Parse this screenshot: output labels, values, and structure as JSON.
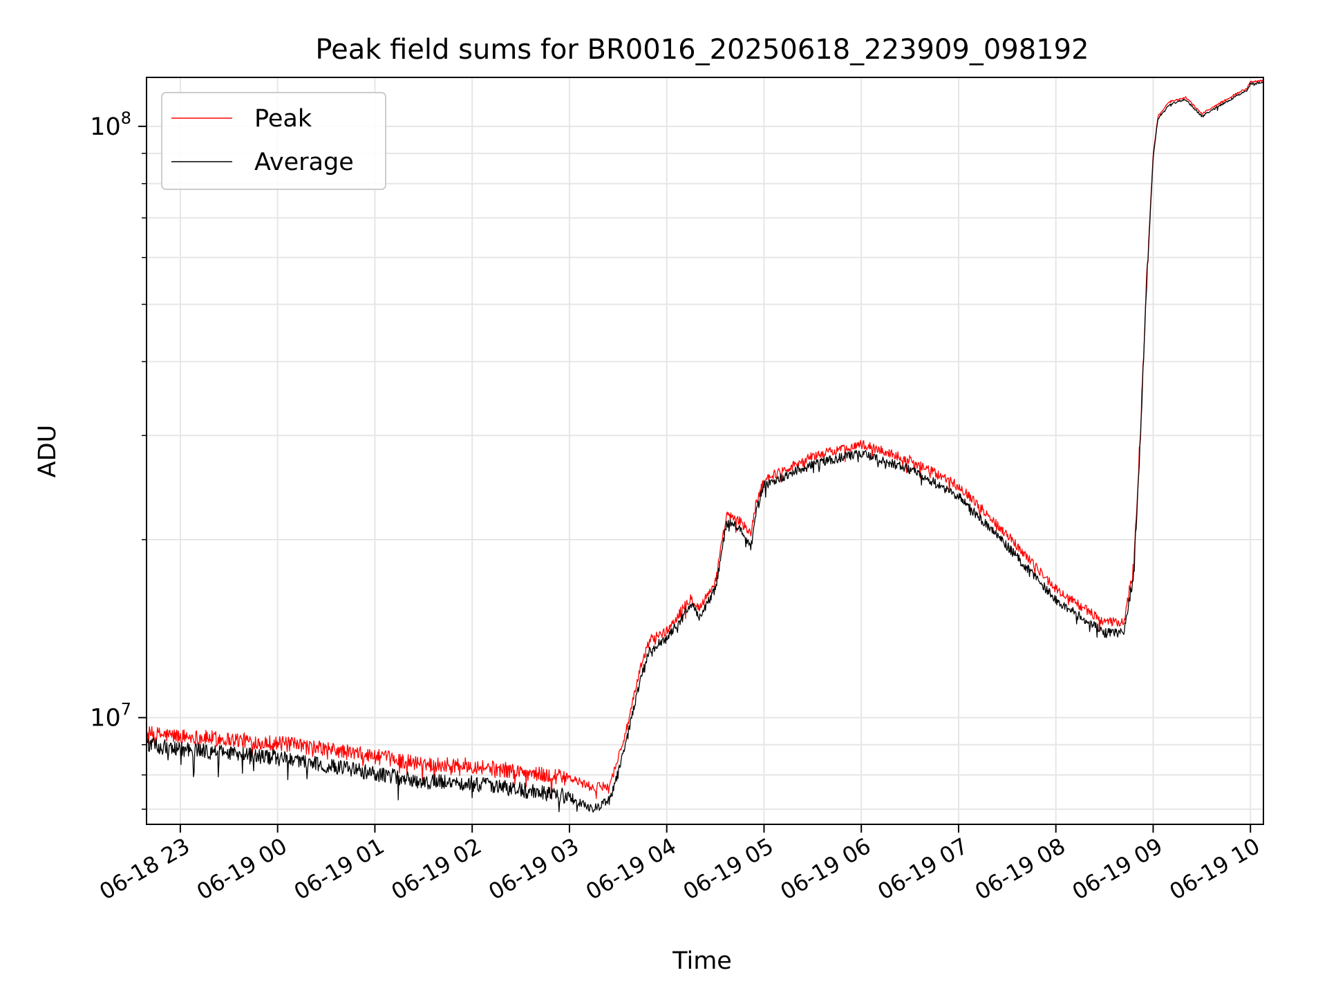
{
  "chart_data": {
    "type": "line",
    "title": "Peak field sums for BR0016_20250618_223909_098192",
    "xlabel": "Time",
    "ylabel": "ADU",
    "y_scale": "log",
    "ylim": [
      6600000,
      121000000
    ],
    "xlim": [
      "2025-06-18T22:39:09",
      "2025-06-19T10:08:00"
    ],
    "grid": true,
    "legend_position": "upper-left",
    "x_tick_labels": [
      "06-18 23",
      "06-19 00",
      "06-19 01",
      "06-19 02",
      "06-19 03",
      "06-19 04",
      "06-19 05",
      "06-19 06",
      "06-19 07",
      "06-19 08",
      "06-19 09",
      "06-19 10"
    ],
    "x_ticks": [
      "2025-06-18T23:00",
      "2025-06-19T00:00",
      "2025-06-19T01:00",
      "2025-06-19T02:00",
      "2025-06-19T03:00",
      "2025-06-19T04:00",
      "2025-06-19T05:00",
      "2025-06-19T06:00",
      "2025-06-19T07:00",
      "2025-06-19T08:00",
      "2025-06-19T09:00",
      "2025-06-19T10:00"
    ],
    "y_major_ticks": [
      {
        "value": 10000000,
        "base": "10",
        "exp": "7"
      },
      {
        "value": 100000000,
        "base": "10",
        "exp": "8"
      }
    ],
    "series": [
      {
        "name": "Peak",
        "color": "#ff0000",
        "points": [
          [
            "2025-06-18T22:39",
            9400000
          ],
          [
            "2025-06-18T23:00",
            9300000
          ],
          [
            "2025-06-18T23:30",
            9200000
          ],
          [
            "2025-06-19T00:00",
            9050000
          ],
          [
            "2025-06-19T00:30",
            8850000
          ],
          [
            "2025-06-19T01:00",
            8600000
          ],
          [
            "2025-06-19T01:30",
            8350000
          ],
          [
            "2025-06-19T02:00",
            8300000
          ],
          [
            "2025-06-19T02:30",
            8100000
          ],
          [
            "2025-06-19T03:00",
            7900000
          ],
          [
            "2025-06-19T03:15",
            7600000
          ],
          [
            "2025-06-19T03:25",
            7700000
          ],
          [
            "2025-06-19T03:35",
            9500000
          ],
          [
            "2025-06-19T03:45",
            12500000
          ],
          [
            "2025-06-19T03:50",
            13600000
          ],
          [
            "2025-06-19T04:00",
            14000000
          ],
          [
            "2025-06-19T04:10",
            15300000
          ],
          [
            "2025-06-19T04:15",
            16000000
          ],
          [
            "2025-06-19T04:20",
            15300000
          ],
          [
            "2025-06-19T04:25",
            16100000
          ],
          [
            "2025-06-19T04:30",
            17000000
          ],
          [
            "2025-06-19T04:37",
            22000000
          ],
          [
            "2025-06-19T04:45",
            21500000
          ],
          [
            "2025-06-19T04:52",
            20500000
          ],
          [
            "2025-06-19T04:55",
            23000000
          ],
          [
            "2025-06-19T05:00",
            25300000
          ],
          [
            "2025-06-19T05:30",
            27700000
          ],
          [
            "2025-06-19T06:00",
            29000000
          ],
          [
            "2025-06-19T06:30",
            27300000
          ],
          [
            "2025-06-19T07:00",
            24700000
          ],
          [
            "2025-06-19T07:30",
            20400000
          ],
          [
            "2025-06-19T08:00",
            16500000
          ],
          [
            "2025-06-19T08:30",
            14500000
          ],
          [
            "2025-06-19T08:42",
            14500000
          ],
          [
            "2025-06-19T08:48",
            18000000
          ],
          [
            "2025-06-19T08:52",
            30000000
          ],
          [
            "2025-06-19T08:56",
            55000000
          ],
          [
            "2025-06-19T09:00",
            90000000
          ],
          [
            "2025-06-19T09:03",
            104000000
          ],
          [
            "2025-06-19T09:10",
            110000000
          ],
          [
            "2025-06-19T09:20",
            112000000
          ],
          [
            "2025-06-19T09:30",
            105000000
          ],
          [
            "2025-06-19T09:40",
            109000000
          ],
          [
            "2025-06-19T09:50",
            113000000
          ],
          [
            "2025-06-19T09:58",
            116000000
          ],
          [
            "2025-06-19T10:00",
            119000000
          ],
          [
            "2025-06-19T10:08",
            119500000
          ]
        ]
      },
      {
        "name": "Average",
        "color": "#000000",
        "points": [
          [
            "2025-06-18T22:39",
            9000000
          ],
          [
            "2025-06-18T23:00",
            8850000
          ],
          [
            "2025-06-18T23:30",
            8700000
          ],
          [
            "2025-06-19T00:00",
            8550000
          ],
          [
            "2025-06-19T00:30",
            8300000
          ],
          [
            "2025-06-19T01:00",
            8050000
          ],
          [
            "2025-06-19T01:30",
            7800000
          ],
          [
            "2025-06-19T02:00",
            7750000
          ],
          [
            "2025-06-19T02:30",
            7550000
          ],
          [
            "2025-06-19T03:00",
            7350000
          ],
          [
            "2025-06-19T03:15",
            7000000
          ],
          [
            "2025-06-19T03:25",
            7250000
          ],
          [
            "2025-06-19T03:35",
            9100000
          ],
          [
            "2025-06-19T03:45",
            12000000
          ],
          [
            "2025-06-19T03:50",
            13100000
          ],
          [
            "2025-06-19T04:00",
            13600000
          ],
          [
            "2025-06-19T04:10",
            14800000
          ],
          [
            "2025-06-19T04:15",
            15600000
          ],
          [
            "2025-06-19T04:20",
            14800000
          ],
          [
            "2025-06-19T04:25",
            15600000
          ],
          [
            "2025-06-19T04:30",
            16500000
          ],
          [
            "2025-06-19T04:37",
            21400000
          ],
          [
            "2025-06-19T04:45",
            21000000
          ],
          [
            "2025-06-19T04:52",
            19500000
          ],
          [
            "2025-06-19T04:55",
            22300000
          ],
          [
            "2025-06-19T05:00",
            24700000
          ],
          [
            "2025-06-19T05:30",
            26900000
          ],
          [
            "2025-06-19T06:00",
            28000000
          ],
          [
            "2025-06-19T06:30",
            26300000
          ],
          [
            "2025-06-19T07:00",
            23700000
          ],
          [
            "2025-06-19T07:30",
            19500000
          ],
          [
            "2025-06-19T08:00",
            15800000
          ],
          [
            "2025-06-19T08:30",
            13900000
          ],
          [
            "2025-06-19T08:42",
            13900000
          ],
          [
            "2025-06-19T08:48",
            17300000
          ],
          [
            "2025-06-19T08:52",
            29000000
          ],
          [
            "2025-06-19T08:56",
            54000000
          ],
          [
            "2025-06-19T09:00",
            89000000
          ],
          [
            "2025-06-19T09:03",
            103000000
          ],
          [
            "2025-06-19T09:10",
            109000000
          ],
          [
            "2025-06-19T09:20",
            111000000
          ],
          [
            "2025-06-19T09:30",
            104000000
          ],
          [
            "2025-06-19T09:40",
            108000000
          ],
          [
            "2025-06-19T09:50",
            112000000
          ],
          [
            "2025-06-19T09:58",
            115000000
          ],
          [
            "2025-06-19T10:00",
            118000000
          ],
          [
            "2025-06-19T10:08",
            118500000
          ]
        ]
      }
    ]
  }
}
